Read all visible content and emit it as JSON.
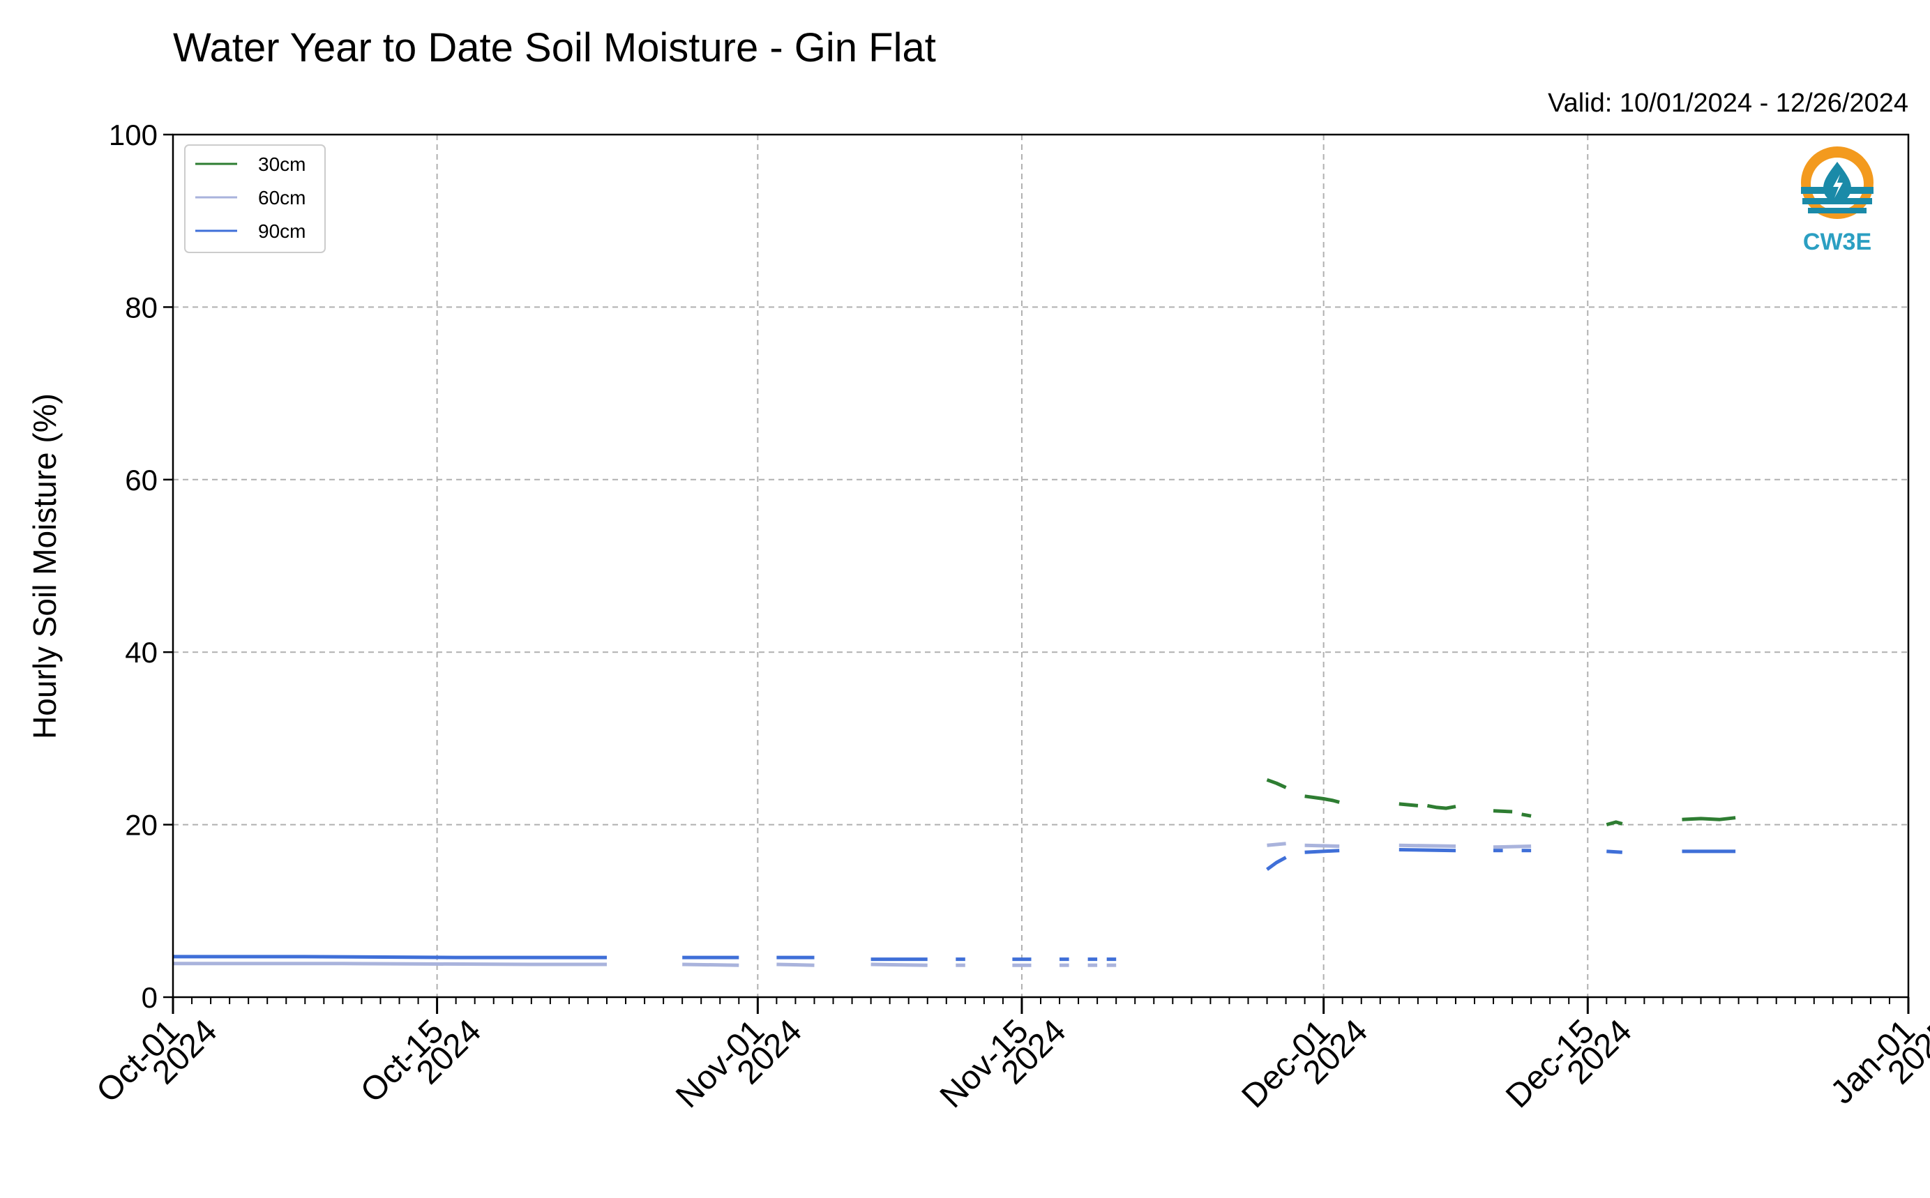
{
  "chart_data": {
    "type": "line",
    "title": "Water Year to Date Soil Moisture - Gin Flat",
    "subtitle": "Valid: 10/01/2024 - 12/26/2024",
    "ylabel": "Hourly Soil Moisture (%)",
    "xlabel": "",
    "ylim": [
      0,
      100
    ],
    "yticks": [
      0,
      20,
      40,
      60,
      80,
      100
    ],
    "xlim": [
      "2024-10-01",
      "2025-01-01"
    ],
    "xticks": [
      {
        "date": "2024-10-01",
        "label1": "Oct-01",
        "label2": "2024"
      },
      {
        "date": "2024-10-15",
        "label1": "Oct-15",
        "label2": "2024"
      },
      {
        "date": "2024-11-01",
        "label1": "Nov-01",
        "label2": "2024"
      },
      {
        "date": "2024-11-15",
        "label1": "Nov-15",
        "label2": "2024"
      },
      {
        "date": "2024-12-01",
        "label1": "Dec-01",
        "label2": "2024"
      },
      {
        "date": "2024-12-15",
        "label1": "Dec-15",
        "label2": "2024"
      },
      {
        "date": "2025-01-01",
        "label1": "Jan-01",
        "label2": "2025"
      }
    ],
    "grid": true,
    "legend_position": "top-left",
    "series": [
      {
        "name": "30cm",
        "color": "#2e7d32",
        "segments": [
          [
            [
              "2024-11-28",
              25.2
            ],
            [
              "2024-11-28T12",
              24.8
            ],
            [
              "2024-11-29",
              24.3
            ]
          ],
          [
            [
              "2024-11-30",
              23.3
            ],
            [
              "2024-12-01",
              23.0
            ],
            [
              "2024-12-01T12",
              22.8
            ],
            [
              "2024-12-01T20",
              22.6
            ]
          ],
          [
            [
              "2024-12-05",
              22.4
            ],
            [
              "2024-12-05T12",
              22.3
            ],
            [
              "2024-12-06",
              22.2
            ]
          ],
          [
            [
              "2024-12-06T12",
              22.2
            ],
            [
              "2024-12-07",
              22.0
            ],
            [
              "2024-12-07T12",
              21.9
            ],
            [
              "2024-12-08",
              22.1
            ]
          ],
          [
            [
              "2024-12-10",
              21.6
            ],
            [
              "2024-12-11",
              21.5
            ]
          ],
          [
            [
              "2024-12-11T12",
              21.2
            ],
            [
              "2024-12-12",
              21.0
            ]
          ],
          [
            [
              "2024-12-16",
              20.0
            ],
            [
              "2024-12-16T12",
              20.3
            ],
            [
              "2024-12-16T20",
              20.1
            ]
          ],
          [
            [
              "2024-12-20",
              20.6
            ],
            [
              "2024-12-21",
              20.7
            ],
            [
              "2024-12-22",
              20.6
            ],
            [
              "2024-12-22T20",
              20.8
            ]
          ]
        ]
      },
      {
        "name": "60cm",
        "color": "#a9b3dc",
        "segments": [
          [
            [
              "2024-10-01",
              3.9
            ],
            [
              "2024-10-10",
              3.9
            ],
            [
              "2024-10-20",
              3.8
            ],
            [
              "2024-10-24",
              3.8
            ]
          ],
          [
            [
              "2024-10-28",
              3.8
            ],
            [
              "2024-10-31",
              3.7
            ]
          ],
          [
            [
              "2024-11-02",
              3.8
            ],
            [
              "2024-11-04",
              3.7
            ]
          ],
          [
            [
              "2024-11-07",
              3.8
            ],
            [
              "2024-11-10",
              3.7
            ]
          ],
          [
            [
              "2024-11-11T12",
              3.7
            ],
            [
              "2024-11-12",
              3.7
            ]
          ],
          [
            [
              "2024-11-14T12",
              3.7
            ],
            [
              "2024-11-15T12",
              3.7
            ]
          ],
          [
            [
              "2024-11-17",
              3.7
            ],
            [
              "2024-11-17T12",
              3.7
            ]
          ],
          [
            [
              "2024-11-18T12",
              3.7
            ],
            [
              "2024-11-19",
              3.7
            ]
          ],
          [
            [
              "2024-11-19T12",
              3.7
            ],
            [
              "2024-11-20",
              3.7
            ]
          ],
          [
            [
              "2024-11-28",
              17.6
            ],
            [
              "2024-11-29",
              17.8
            ]
          ],
          [
            [
              "2024-11-30",
              17.6
            ],
            [
              "2024-12-01T20",
              17.5
            ]
          ],
          [
            [
              "2024-12-05",
              17.6
            ],
            [
              "2024-12-08",
              17.5
            ]
          ],
          [
            [
              "2024-12-10",
              17.4
            ],
            [
              "2024-12-12",
              17.5
            ]
          ]
        ]
      },
      {
        "name": "90cm",
        "color": "#3f6fd8",
        "segments": [
          [
            [
              "2024-10-01",
              4.7
            ],
            [
              "2024-10-08",
              4.7
            ],
            [
              "2024-10-16",
              4.6
            ],
            [
              "2024-10-24",
              4.6
            ]
          ],
          [
            [
              "2024-10-28",
              4.6
            ],
            [
              "2024-10-31",
              4.6
            ]
          ],
          [
            [
              "2024-11-02",
              4.6
            ],
            [
              "2024-11-04",
              4.6
            ]
          ],
          [
            [
              "2024-11-07",
              4.4
            ],
            [
              "2024-11-10",
              4.4
            ]
          ],
          [
            [
              "2024-11-11T12",
              4.4
            ],
            [
              "2024-11-12",
              4.4
            ]
          ],
          [
            [
              "2024-11-14T12",
              4.4
            ],
            [
              "2024-11-15T12",
              4.4
            ]
          ],
          [
            [
              "2024-11-17",
              4.4
            ],
            [
              "2024-11-17T12",
              4.4
            ]
          ],
          [
            [
              "2024-11-18T12",
              4.4
            ],
            [
              "2024-11-19",
              4.4
            ]
          ],
          [
            [
              "2024-11-19T12",
              4.4
            ],
            [
              "2024-11-20",
              4.4
            ]
          ],
          [
            [
              "2024-11-28",
              14.8
            ],
            [
              "2024-11-28T12",
              15.6
            ],
            [
              "2024-11-29",
              16.2
            ]
          ],
          [
            [
              "2024-11-30",
              16.8
            ],
            [
              "2024-12-01T20",
              17.0
            ]
          ],
          [
            [
              "2024-12-05",
              17.1
            ],
            [
              "2024-12-08",
              17.0
            ]
          ],
          [
            [
              "2024-12-10",
              17.0
            ],
            [
              "2024-12-10T12",
              17.0
            ]
          ],
          [
            [
              "2024-12-11T12",
              17.0
            ],
            [
              "2024-12-12",
              17.0
            ]
          ],
          [
            [
              "2024-12-16",
              16.9
            ],
            [
              "2024-12-16T20",
              16.8
            ]
          ],
          [
            [
              "2024-12-20",
              16.9
            ],
            [
              "2024-12-22T20",
              16.9
            ]
          ]
        ]
      }
    ]
  },
  "logo": {
    "text": "CW3E",
    "icon": "water-drop-sun-logo",
    "colors": {
      "sun": "#f39a1e",
      "water": "#1a8aa8",
      "text": "#2b9fc2"
    }
  }
}
